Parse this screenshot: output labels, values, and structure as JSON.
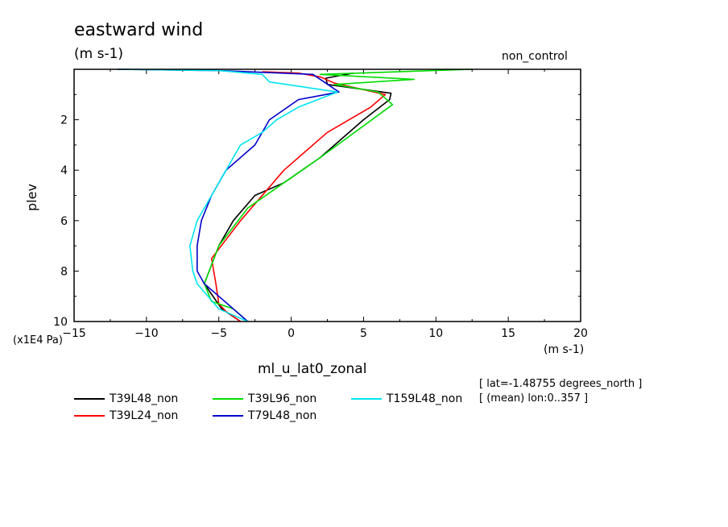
{
  "chart_data": {
    "type": "line",
    "title": "eastward wind",
    "units_label": "(m s-1)",
    "run_label": "non_control",
    "xlabel": "ml_u_lat0_zonal",
    "x_units": "(m s-1)",
    "ylabel": "plev",
    "y_units": "(x1E4 Pa)",
    "xlim": [
      -15,
      20
    ],
    "ylim": [
      0,
      10
    ],
    "x_ticks": [
      -15,
      -10,
      -5,
      0,
      5,
      10,
      15,
      20
    ],
    "x_tick_labels": [
      "−15",
      "−10",
      "−5",
      "0",
      "5",
      "10",
      "15",
      "20"
    ],
    "y_ticks": [
      2,
      4,
      6,
      8,
      10
    ],
    "y_tick_labels": [
      "2",
      "4",
      "6",
      "8",
      "10"
    ],
    "info": [
      "[ lat=-1.48755 degrees_north ]",
      "[ (mean) lon:0..357 ]"
    ],
    "series": [
      {
        "name": "T39L48_non",
        "color": "#000000",
        "x": [
          4.3,
          2.4,
          2.5,
          6.9,
          6.8,
          5.0,
          2.0,
          -0.5,
          -2.5,
          -4.0,
          -5.0,
          -6.0,
          -4.8,
          -3.5
        ],
        "y": [
          0.15,
          0.35,
          0.6,
          0.95,
          1.2,
          2.0,
          3.5,
          4.5,
          5.0,
          6.0,
          7.0,
          8.5,
          9.5,
          10.0
        ]
      },
      {
        "name": "T39L24_non",
        "color": "#ff0000",
        "x": [
          -2.0,
          0.5,
          2.0,
          3.0,
          6.5,
          5.5,
          2.5,
          -0.5,
          -3.5,
          -5.5,
          -5.2,
          -5.0,
          -4.5,
          -3.5
        ],
        "y": [
          0.1,
          0.15,
          0.3,
          0.55,
          1.0,
          1.5,
          2.5,
          4.0,
          6.0,
          7.5,
          8.5,
          9.3,
          9.6,
          10.0
        ]
      },
      {
        "name": "T39L96_non",
        "color": "#00dd00",
        "x": [
          12.5,
          2.0,
          8.5,
          3.0,
          6.0,
          7.0,
          2.0,
          -0.5,
          -3.0,
          -5.0,
          -6.0,
          -5.5,
          -4.0,
          -3.0
        ],
        "y": [
          0.0,
          0.2,
          0.4,
          0.6,
          0.9,
          1.4,
          3.5,
          4.5,
          5.5,
          7.0,
          8.5,
          9.2,
          9.5,
          10.0
        ]
      },
      {
        "name": "T79L48_non",
        "color": "#0000cc",
        "x": [
          -12.0,
          -5.0,
          1.5,
          3.3,
          0.5,
          -1.5,
          -2.5,
          -4.5,
          -5.5,
          -6.2,
          -6.5,
          -6.5,
          -6.0,
          -5.0,
          -4.0,
          -3.0
        ],
        "y": [
          0.0,
          0.05,
          0.2,
          0.9,
          1.2,
          2.0,
          3.0,
          4.0,
          5.0,
          6.0,
          7.0,
          8.0,
          8.5,
          9.0,
          9.5,
          10.0
        ]
      },
      {
        "name": "T159L48_non",
        "color": "#00e5ee",
        "x": [
          -12.0,
          -5.0,
          -2.0,
          -1.5,
          3.2,
          0.5,
          -1.0,
          -2.0,
          -3.5,
          -4.5,
          -5.5,
          -6.5,
          -7.0,
          -6.8,
          -6.5,
          -5.0,
          -3.0
        ],
        "y": [
          0.0,
          0.05,
          0.2,
          0.5,
          0.9,
          1.5,
          2.0,
          2.5,
          3.0,
          4.0,
          5.0,
          6.0,
          7.0,
          8.0,
          8.5,
          9.5,
          10.0
        ]
      }
    ]
  },
  "legend": {
    "items": [
      {
        "label": "T39L48_non",
        "color": "#000000"
      },
      {
        "label": "T39L24_non",
        "color": "#ff0000"
      },
      {
        "label": "T39L96_non",
        "color": "#00dd00"
      },
      {
        "label": "T79L48_non",
        "color": "#0000cc"
      },
      {
        "label": "T159L48_non",
        "color": "#00e5ee"
      }
    ]
  }
}
